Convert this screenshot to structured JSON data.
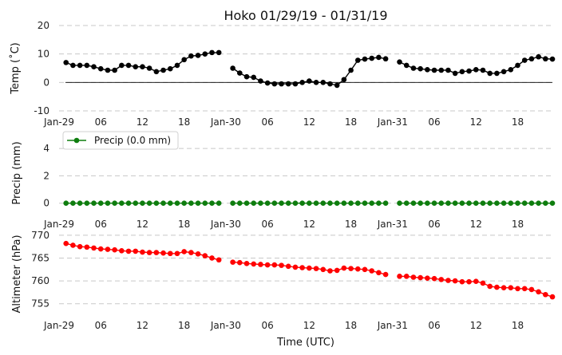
{
  "chart_data": {
    "title": "Hoko 01/29/19 - 01/31/19",
    "xlabel": "Time (UTC)",
    "x_ticks": [
      "Jan-29",
      "06",
      "12",
      "18",
      "Jan-30",
      "06",
      "12",
      "18",
      "Jan-31",
      "06",
      "12",
      "18"
    ],
    "x_range_hours": [
      0,
      71
    ],
    "panels": [
      {
        "name": "temp",
        "type": "line",
        "ylabel": "Temp (˚C)",
        "ylim": [
          -10,
          20
        ],
        "yticks": [
          -10,
          0,
          10,
          20
        ],
        "zero_line": true,
        "color": "#000000",
        "legend": null,
        "x": [
          1,
          2,
          3,
          4,
          5,
          6,
          7,
          8,
          9,
          10,
          11,
          12,
          13,
          14,
          15,
          16,
          17,
          18,
          19,
          20,
          21,
          22,
          23,
          24,
          25,
          26,
          27,
          28,
          29,
          30,
          31,
          32,
          33,
          34,
          35,
          36,
          37,
          38,
          39,
          40,
          41,
          42,
          43,
          44,
          45,
          46,
          47,
          48,
          49,
          50,
          51,
          52,
          53,
          54,
          55,
          56,
          57,
          58,
          59,
          60,
          61,
          62,
          63,
          64,
          65,
          66,
          67,
          68,
          69,
          70,
          71
        ],
        "values": [
          7.0,
          6.0,
          6.0,
          6.0,
          5.5,
          4.8,
          4.3,
          4.3,
          6.0,
          6.0,
          5.5,
          5.5,
          5.0,
          3.8,
          4.3,
          4.8,
          6.0,
          8.0,
          9.3,
          9.5,
          10.0,
          10.5,
          10.5,
          null,
          5.0,
          3.3,
          2.0,
          1.8,
          0.5,
          -0.2,
          -0.5,
          -0.5,
          -0.5,
          -0.5,
          0.0,
          0.5,
          0.0,
          0.0,
          -0.5,
          -1.0,
          1.0,
          4.3,
          7.8,
          8.2,
          8.5,
          8.8,
          8.3,
          null,
          7.2,
          6.0,
          5.0,
          4.8,
          4.5,
          4.3,
          4.3,
          4.3,
          3.2,
          3.8,
          4.0,
          4.5,
          4.3,
          3.2,
          3.2,
          3.8,
          4.5,
          6.0,
          7.8,
          8.3,
          9.0,
          8.3,
          8.2
        ]
      },
      {
        "name": "precip",
        "type": "line",
        "ylabel": "Precip (mm)",
        "ylim": [
          -0.6,
          5.0
        ],
        "yticks": [
          0,
          2,
          4
        ],
        "color": "#0e7d0e",
        "legend": "Precip (0.0 mm)",
        "x": [
          1,
          2,
          3,
          4,
          5,
          6,
          7,
          8,
          9,
          10,
          11,
          12,
          13,
          14,
          15,
          16,
          17,
          18,
          19,
          20,
          21,
          22,
          23,
          25,
          26,
          27,
          28,
          29,
          30,
          31,
          32,
          33,
          34,
          35,
          36,
          37,
          38,
          39,
          40,
          41,
          42,
          43,
          44,
          45,
          46,
          47,
          49,
          50,
          51,
          52,
          53,
          54,
          55,
          56,
          57,
          58,
          59,
          60,
          61,
          62,
          63,
          64,
          65,
          66,
          67,
          68,
          69,
          70,
          71
        ],
        "values": [
          0,
          0,
          0,
          0,
          0,
          0,
          0,
          0,
          0,
          0,
          0,
          0,
          0,
          0,
          0,
          0,
          0,
          0,
          0,
          0,
          0,
          0,
          0,
          0,
          0,
          0,
          0,
          0,
          0,
          0,
          0,
          0,
          0,
          0,
          0,
          0,
          0,
          0,
          0,
          0,
          0,
          0,
          0,
          0,
          0,
          0,
          0,
          0,
          0,
          0,
          0,
          0,
          0,
          0,
          0,
          0,
          0,
          0,
          0,
          0,
          0,
          0,
          0,
          0,
          0,
          0,
          0,
          0,
          0
        ]
      },
      {
        "name": "altimeter",
        "type": "line",
        "ylabel": "Altimeter (hPa)",
        "ylim": [
          752.5,
          770.5
        ],
        "yticks": [
          755,
          760,
          765,
          770
        ],
        "color": "#ff0000",
        "legend": null,
        "x": [
          1,
          2,
          3,
          4,
          5,
          6,
          7,
          8,
          9,
          10,
          11,
          12,
          13,
          14,
          15,
          16,
          17,
          18,
          19,
          20,
          21,
          22,
          23,
          25,
          26,
          27,
          28,
          29,
          30,
          31,
          32,
          33,
          34,
          35,
          36,
          37,
          38,
          39,
          40,
          41,
          42,
          43,
          44,
          45,
          46,
          47,
          49,
          50,
          51,
          52,
          53,
          54,
          55,
          56,
          57,
          58,
          59,
          60,
          61,
          62,
          63,
          64,
          65,
          66,
          67,
          68,
          69,
          70,
          71
        ],
        "values": [
          768.2,
          767.8,
          767.5,
          767.4,
          767.2,
          767.0,
          766.9,
          766.8,
          766.6,
          766.5,
          766.5,
          766.3,
          766.2,
          766.2,
          766.1,
          766.0,
          766.0,
          766.4,
          766.2,
          765.9,
          765.5,
          765.0,
          764.6,
          764.1,
          764.0,
          763.8,
          763.7,
          763.6,
          763.5,
          763.5,
          763.4,
          763.2,
          763.0,
          762.9,
          762.8,
          762.7,
          762.5,
          762.2,
          762.3,
          762.8,
          762.7,
          762.6,
          762.5,
          762.2,
          761.8,
          761.4,
          761.0,
          761.0,
          760.8,
          760.7,
          760.6,
          760.5,
          760.3,
          760.1,
          760.0,
          759.8,
          759.8,
          759.9,
          759.5,
          758.8,
          758.6,
          758.5,
          758.5,
          758.3,
          758.3,
          758.1,
          757.6,
          757.0,
          756.5
        ]
      }
    ]
  }
}
